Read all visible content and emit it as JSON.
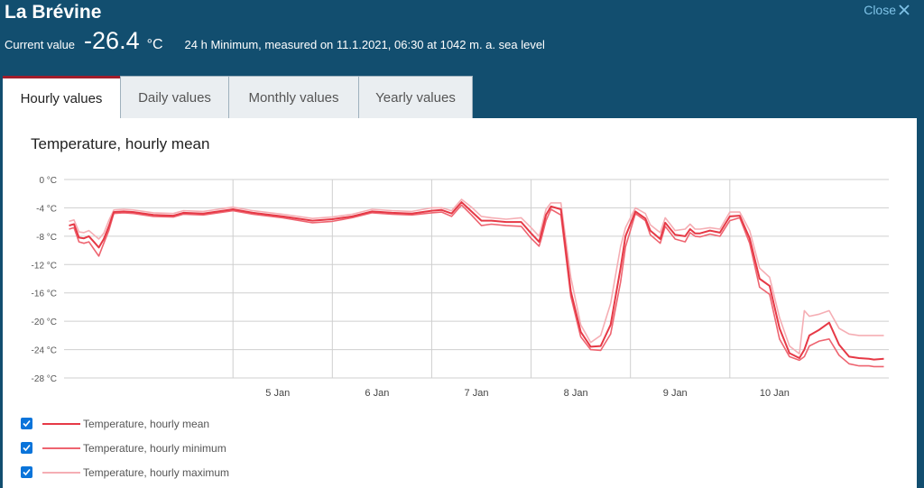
{
  "header": {
    "title": "La Brévine",
    "close_label": "Close",
    "current_label": "Current value",
    "current_value": "-26.4",
    "current_unit": "°C",
    "description": "24 h Minimum, measured on 11.1.2021, 06:30 at 1042 m. a. sea level"
  },
  "tabs": [
    {
      "label": "Hourly values",
      "active": true
    },
    {
      "label": "Daily values",
      "active": false
    },
    {
      "label": "Monthly values",
      "active": false
    },
    {
      "label": "Yearly values",
      "active": false
    }
  ],
  "colors": {
    "background": "#124e6f",
    "accent": "#a01d2b",
    "mean": "#e63946",
    "minimum": "#ee6470",
    "maximum": "#f5aeb4",
    "checkbox": "#0a74da",
    "close_link": "#7fc3e8"
  },
  "chart_data": {
    "type": "line",
    "title": "Temperature, hourly mean",
    "ylim": [
      -28,
      0
    ],
    "yticks": [
      0,
      -4,
      -8,
      -12,
      -16,
      -20,
      -24,
      -28
    ],
    "ytick_labels": [
      "0 °C",
      "-4 °C",
      "-8 °C",
      "-12 °C",
      "-16 °C",
      "-20 °C",
      "-24 °C",
      "-28 °C"
    ],
    "xlim": [
      3.3,
      11.6
    ],
    "xticks": [
      5,
      6,
      7,
      8,
      9,
      10
    ],
    "xtick_labels": [
      "5 Jan",
      "6 Jan",
      "7 Jan",
      "8 Jan",
      "9 Jan",
      "10 Jan"
    ],
    "grid": true,
    "legend_position": "bottom-left",
    "series": [
      {
        "name": "Temperature, hourly mean",
        "x": [
          3.35,
          3.4,
          3.45,
          3.5,
          3.55,
          3.6,
          3.65,
          3.7,
          3.75,
          3.8,
          3.9,
          4.0,
          4.2,
          4.4,
          4.5,
          4.7,
          5.0,
          5.2,
          5.5,
          5.8,
          6.0,
          6.2,
          6.4,
          6.6,
          6.8,
          7.0,
          7.1,
          7.2,
          7.3,
          7.4,
          7.5,
          7.6,
          7.75,
          7.9,
          8.0,
          8.08,
          8.1,
          8.15,
          8.2,
          8.3,
          8.4,
          8.5,
          8.6,
          8.7,
          8.8,
          8.9,
          8.95,
          9.05,
          9.15,
          9.2,
          9.3,
          9.35,
          9.45,
          9.55,
          9.6,
          9.65,
          9.7,
          9.8,
          9.9,
          10.0,
          10.1,
          10.2,
          10.3,
          10.4,
          10.5,
          10.6,
          10.7,
          10.75,
          10.8,
          10.9,
          11.0,
          11.1,
          11.2,
          11.3,
          11.4,
          11.45,
          11.55
        ],
        "y": [
          -6.5,
          -6.3,
          -8.2,
          -8.3,
          -8.0,
          -8.8,
          -9.6,
          -8.4,
          -6.6,
          -4.6,
          -4.5,
          -4.6,
          -5.0,
          -5.1,
          -4.7,
          -4.8,
          -4.2,
          -4.7,
          -5.2,
          -5.8,
          -5.6,
          -5.2,
          -4.5,
          -4.7,
          -4.8,
          -4.4,
          -4.3,
          -4.8,
          -3.2,
          -4.5,
          -5.8,
          -5.8,
          -6.0,
          -6.0,
          -7.6,
          -8.8,
          -7.8,
          -5.0,
          -3.8,
          -4.2,
          -15.8,
          -21.5,
          -23.6,
          -23.5,
          -20.5,
          -12.5,
          -8.0,
          -4.5,
          -5.5,
          -7.2,
          -8.4,
          -6.1,
          -7.8,
          -8.0,
          -7.0,
          -7.6,
          -7.6,
          -7.2,
          -7.5,
          -5.2,
          -5.1,
          -8.3,
          -14.0,
          -15.0,
          -21.0,
          -24.5,
          -25.2,
          -24.0,
          -22.0,
          -21.2,
          -20.2,
          -23.3,
          -25.0,
          -25.2,
          -25.3,
          -25.4,
          -25.3
        ]
      },
      {
        "name": "Temperature, hourly minimum",
        "x": [
          3.35,
          3.4,
          3.45,
          3.5,
          3.55,
          3.6,
          3.65,
          3.7,
          3.75,
          3.8,
          3.9,
          4.0,
          4.2,
          4.4,
          4.5,
          4.7,
          5.0,
          5.2,
          5.5,
          5.8,
          6.0,
          6.2,
          6.4,
          6.6,
          6.8,
          7.0,
          7.1,
          7.2,
          7.3,
          7.4,
          7.5,
          7.6,
          7.75,
          7.9,
          8.0,
          8.08,
          8.1,
          8.15,
          8.2,
          8.3,
          8.4,
          8.5,
          8.6,
          8.7,
          8.8,
          8.9,
          8.95,
          9.05,
          9.15,
          9.2,
          9.3,
          9.35,
          9.45,
          9.55,
          9.6,
          9.65,
          9.7,
          9.8,
          9.9,
          10.0,
          10.1,
          10.2,
          10.3,
          10.4,
          10.5,
          10.6,
          10.7,
          10.75,
          10.8,
          10.9,
          11.0,
          11.1,
          11.2,
          11.3,
          11.4,
          11.45,
          11.55
        ],
        "y": [
          -7.0,
          -6.8,
          -8.8,
          -9.0,
          -8.8,
          -9.8,
          -10.8,
          -9.0,
          -7.2,
          -4.8,
          -4.7,
          -4.8,
          -5.2,
          -5.3,
          -4.9,
          -5.0,
          -4.4,
          -4.9,
          -5.4,
          -6.1,
          -5.9,
          -5.4,
          -4.7,
          -4.9,
          -5.0,
          -4.7,
          -4.6,
          -5.2,
          -3.6,
          -5.0,
          -6.5,
          -6.3,
          -6.5,
          -6.6,
          -8.3,
          -9.4,
          -8.5,
          -5.8,
          -4.2,
          -5.0,
          -16.5,
          -22.2,
          -24.0,
          -24.1,
          -21.8,
          -14.5,
          -9.5,
          -4.8,
          -5.8,
          -7.8,
          -9.0,
          -6.6,
          -8.4,
          -8.8,
          -7.5,
          -8.0,
          -8.1,
          -7.7,
          -8.0,
          -5.8,
          -5.4,
          -9.0,
          -15.2,
          -16.2,
          -22.5,
          -25.0,
          -25.5,
          -25.0,
          -23.5,
          -22.8,
          -22.5,
          -24.8,
          -26.0,
          -26.3,
          -26.3,
          -26.4,
          -26.4
        ]
      },
      {
        "name": "Temperature, hourly maximum",
        "x": [
          3.35,
          3.4,
          3.45,
          3.5,
          3.55,
          3.6,
          3.65,
          3.7,
          3.75,
          3.8,
          3.9,
          4.0,
          4.2,
          4.4,
          4.5,
          4.7,
          5.0,
          5.2,
          5.5,
          5.8,
          6.0,
          6.2,
          6.4,
          6.6,
          6.8,
          7.0,
          7.1,
          7.2,
          7.3,
          7.4,
          7.5,
          7.6,
          7.75,
          7.9,
          8.0,
          8.08,
          8.1,
          8.15,
          8.2,
          8.3,
          8.4,
          8.5,
          8.6,
          8.7,
          8.8,
          8.9,
          8.95,
          9.05,
          9.15,
          9.2,
          9.3,
          9.35,
          9.45,
          9.55,
          9.6,
          9.65,
          9.7,
          9.8,
          9.9,
          10.0,
          10.1,
          10.2,
          10.3,
          10.4,
          10.5,
          10.6,
          10.7,
          10.75,
          10.8,
          10.9,
          11.0,
          11.1,
          11.2,
          11.3,
          11.4,
          11.45,
          11.55
        ],
        "y": [
          -5.9,
          -5.7,
          -7.4,
          -7.5,
          -7.2,
          -7.8,
          -8.4,
          -7.6,
          -5.8,
          -4.3,
          -4.2,
          -4.3,
          -4.7,
          -4.8,
          -4.4,
          -4.5,
          -3.9,
          -4.4,
          -4.9,
          -5.5,
          -5.3,
          -4.9,
          -4.2,
          -4.4,
          -4.5,
          -4.0,
          -4.0,
          -4.4,
          -2.8,
          -3.9,
          -5.2,
          -5.4,
          -5.6,
          -5.4,
          -6.8,
          -8.0,
          -7.0,
          -4.2,
          -3.3,
          -3.3,
          -13.8,
          -20.5,
          -23.0,
          -22.0,
          -17.5,
          -9.5,
          -6.8,
          -4.0,
          -4.8,
          -6.4,
          -7.5,
          -5.4,
          -7.2,
          -7.0,
          -6.3,
          -7.0,
          -7.0,
          -6.8,
          -7.0,
          -4.6,
          -4.6,
          -7.2,
          -12.5,
          -13.8,
          -19.5,
          -23.5,
          -24.6,
          -18.5,
          -19.3,
          -19.0,
          -18.5,
          -21.0,
          -21.8,
          -22.0,
          -22.0,
          -22.0,
          -22.0
        ]
      }
    ]
  }
}
